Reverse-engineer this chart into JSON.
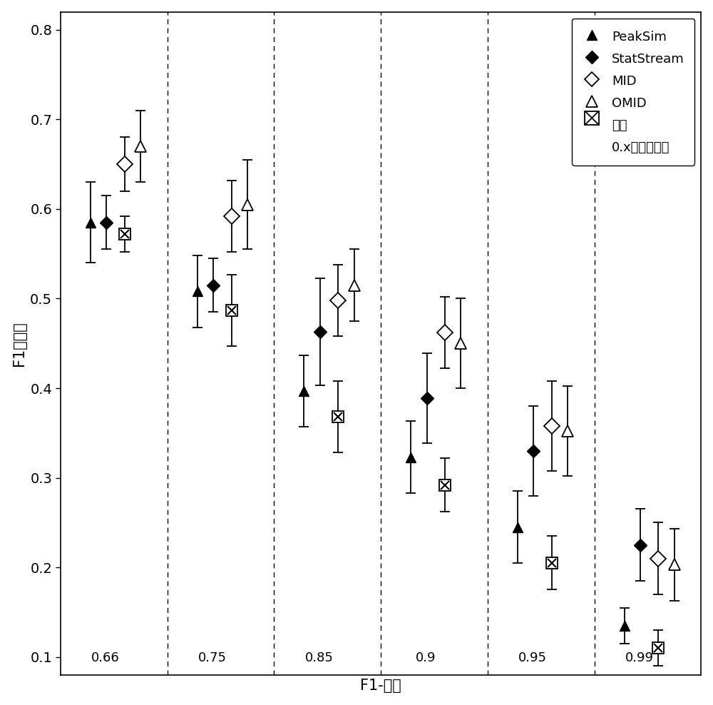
{
  "title": "",
  "xlabel": "F1-评分",
  "ylabel": "F1最大値",
  "groups": [
    "0.66",
    "0.75",
    "0.85",
    "0.9",
    "0.95",
    "0.99"
  ],
  "group_positions": [
    1,
    2,
    3,
    4,
    5,
    6
  ],
  "series": {
    "PeakSim": {
      "offsets": [
        -0.22,
        -0.22,
        -0.22,
        -0.22,
        -0.22,
        -0.22
      ],
      "values": [
        0.585,
        0.508,
        0.397,
        0.323,
        0.245,
        0.135
      ],
      "yerr_low": [
        0.045,
        0.04,
        0.04,
        0.04,
        0.04,
        0.02
      ],
      "yerr_high": [
        0.045,
        0.04,
        0.04,
        0.04,
        0.04,
        0.02
      ]
    },
    "StatStream": {
      "offsets": [
        -0.07,
        -0.07,
        -0.07,
        -0.07,
        -0.07,
        -0.07
      ],
      "values": [
        0.585,
        0.515,
        0.463,
        0.389,
        0.33,
        0.225
      ],
      "yerr_low": [
        0.03,
        0.03,
        0.06,
        0.05,
        0.05,
        0.04
      ],
      "yerr_high": [
        0.03,
        0.03,
        0.06,
        0.05,
        0.05,
        0.04
      ]
    },
    "MID": {
      "offsets": [
        0.1,
        0.1,
        0.1,
        0.1,
        0.1,
        0.1
      ],
      "values": [
        0.65,
        0.592,
        0.498,
        0.462,
        0.358,
        0.21
      ],
      "yerr_low": [
        0.03,
        0.04,
        0.04,
        0.04,
        0.05,
        0.04
      ],
      "yerr_high": [
        0.03,
        0.04,
        0.04,
        0.04,
        0.05,
        0.04
      ]
    },
    "OMID": {
      "offsets": [
        0.25,
        0.25,
        0.25,
        0.25,
        0.25,
        0.25
      ],
      "values": [
        0.67,
        0.605,
        0.515,
        0.45,
        0.352,
        0.203
      ],
      "yerr_low": [
        0.04,
        0.05,
        0.04,
        0.05,
        0.05,
        0.04
      ],
      "yerr_high": [
        0.04,
        0.05,
        0.04,
        0.05,
        0.05,
        0.04
      ]
    },
    "Random": {
      "offsets": [
        0.1,
        0.1,
        0.1,
        0.1,
        0.1,
        0.1
      ],
      "values": [
        0.572,
        0.487,
        0.368,
        0.292,
        0.205,
        0.11
      ],
      "yerr_low": [
        0.02,
        0.04,
        0.04,
        0.03,
        0.03,
        0.02
      ],
      "yerr_high": [
        0.02,
        0.04,
        0.04,
        0.03,
        0.03,
        0.02
      ]
    }
  },
  "vline_positions": [
    1.5,
    2.5,
    3.5,
    4.5,
    5.5
  ],
  "ylim": [
    0.08,
    0.82
  ],
  "yticks": [
    0.1,
    0.2,
    0.3,
    0.4,
    0.5,
    0.6,
    0.7,
    0.8
  ],
  "background_color": "white"
}
